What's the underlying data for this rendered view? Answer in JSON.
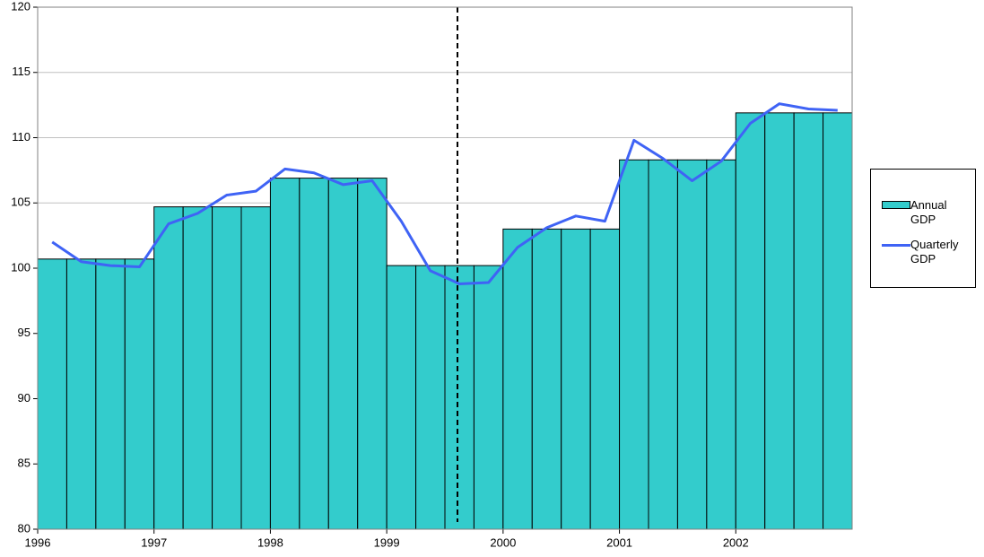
{
  "chart_data": {
    "type": "bar-line",
    "categories": [
      "1996",
      null,
      null,
      null,
      "1997",
      null,
      null,
      null,
      "1998",
      null,
      null,
      null,
      "1999",
      null,
      null,
      null,
      "2000",
      null,
      null,
      null,
      "2001",
      null,
      null,
      null,
      "2002",
      null,
      null,
      null
    ],
    "series": [
      {
        "name": "Annual GDP",
        "type": "bar",
        "color": "#33cccc",
        "values": [
          100.7,
          100.7,
          100.7,
          100.7,
          104.7,
          104.7,
          104.7,
          104.7,
          106.9,
          106.9,
          106.9,
          106.9,
          100.2,
          100.2,
          100.2,
          100.2,
          103.0,
          103.0,
          103.0,
          103.0,
          108.3,
          108.3,
          108.3,
          108.3,
          111.9,
          111.9,
          111.9,
          111.9
        ]
      },
      {
        "name": "Quarterly GDP",
        "type": "line",
        "color": "#3f63f5",
        "values": [
          102.0,
          100.5,
          100.2,
          100.1,
          103.4,
          104.2,
          105.6,
          105.9,
          107.6,
          107.3,
          106.4,
          106.7,
          103.6,
          99.8,
          98.8,
          98.9,
          101.6,
          103.1,
          104.0,
          103.6,
          109.8,
          108.4,
          106.7,
          108.2,
          111.1,
          112.6,
          112.2,
          112.1
        ]
      }
    ],
    "ylim": [
      80,
      120
    ],
    "yticks": [
      80,
      85,
      90,
      95,
      100,
      105,
      110,
      115,
      120
    ],
    "grid": true,
    "legend": "right"
  }
}
